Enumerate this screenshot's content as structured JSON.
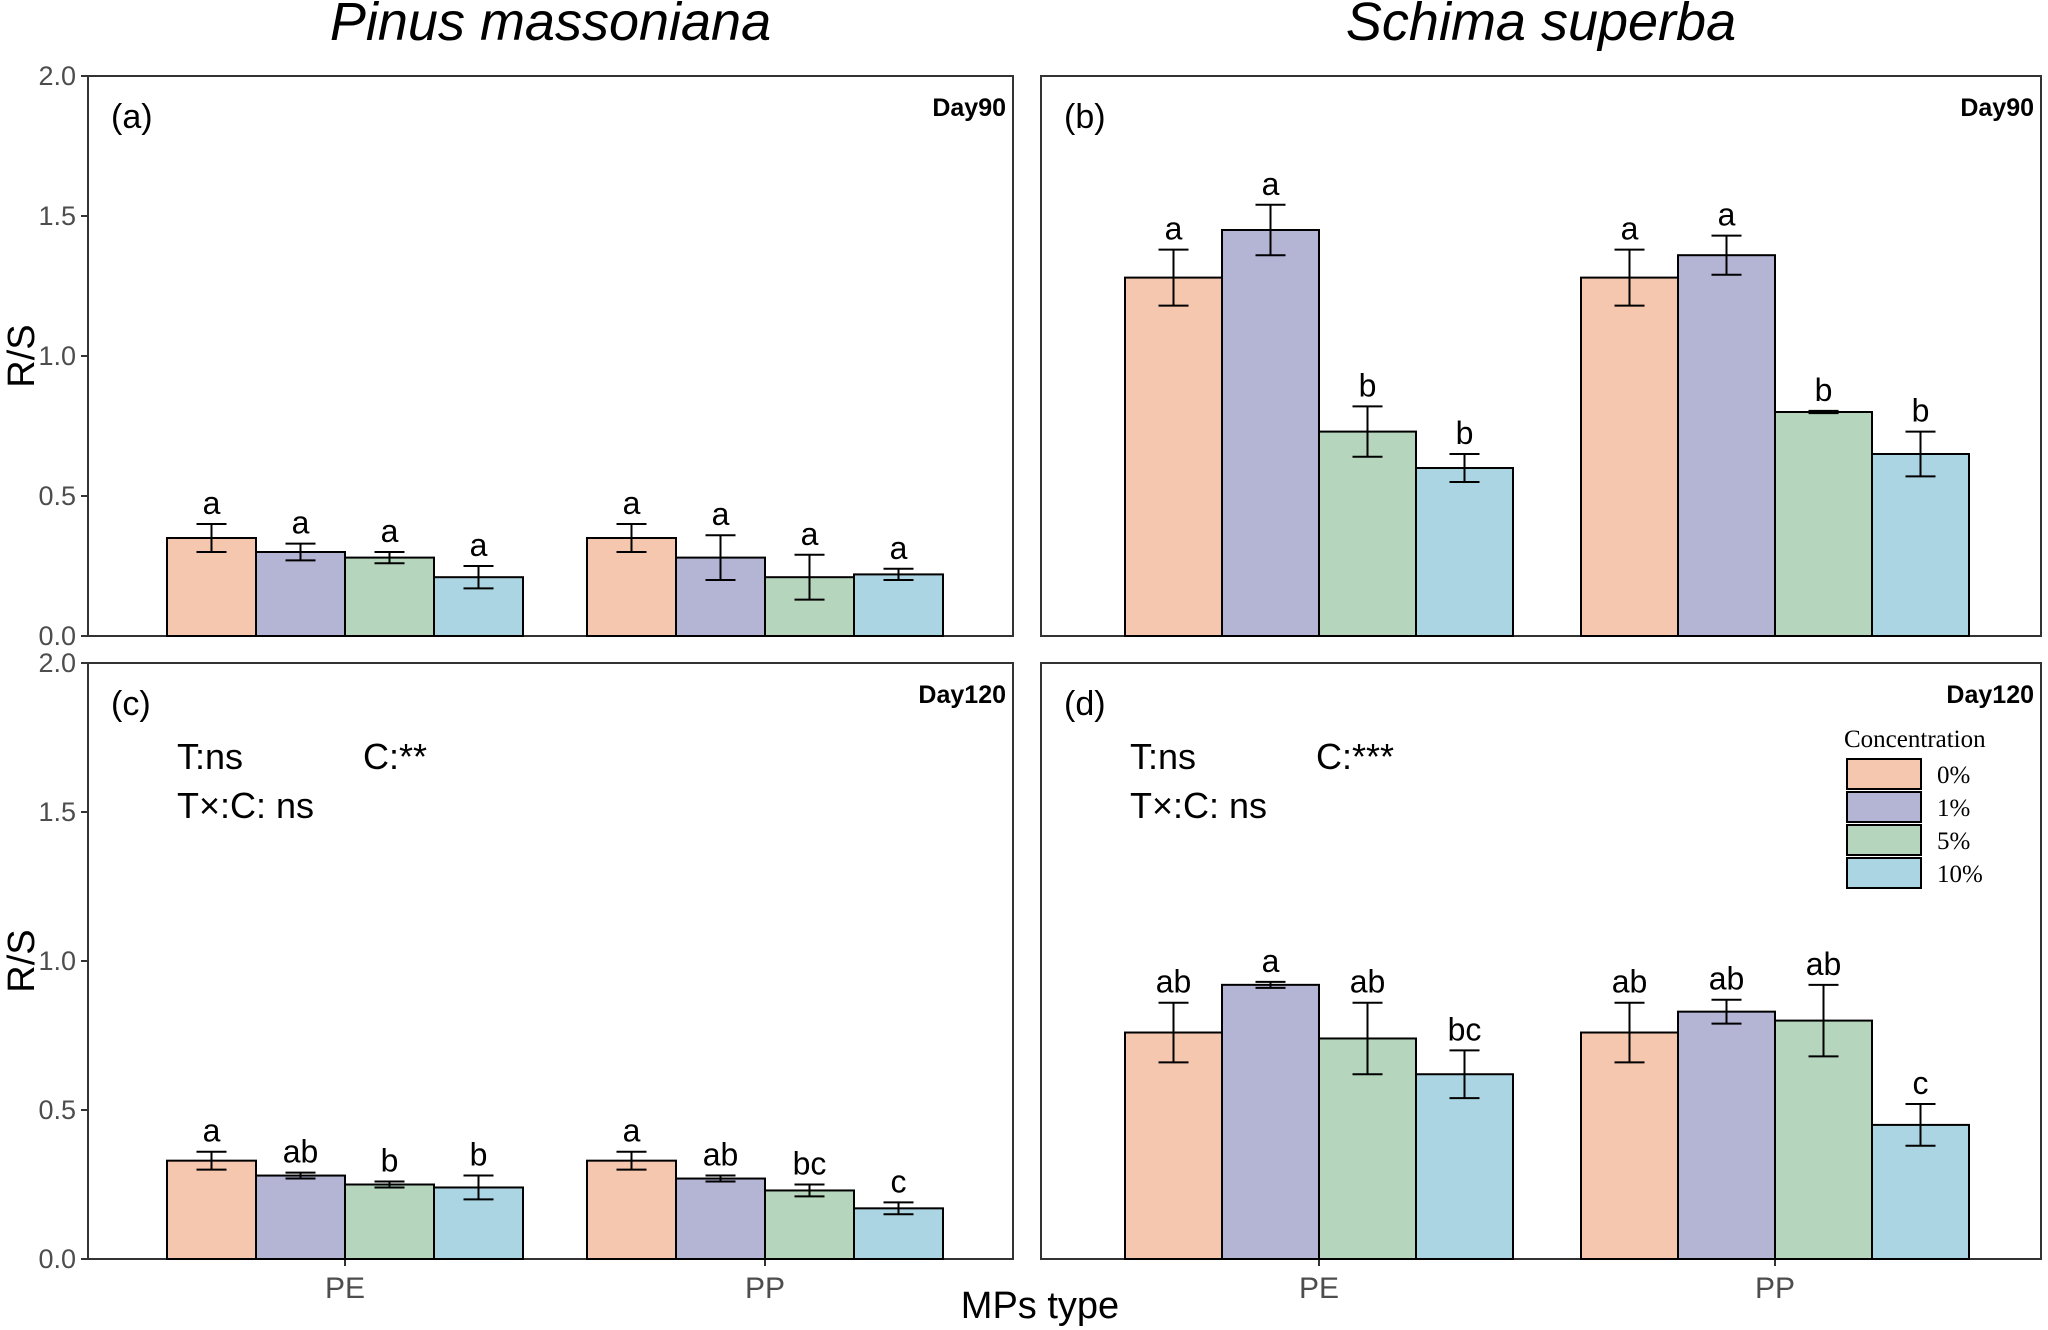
{
  "y_axis_title": "R/S",
  "x_axis_title": "MPs type",
  "legend": {
    "title": "Concentration",
    "labels": [
      "0%",
      "1%",
      "5%",
      "10%"
    ],
    "colors": [
      "#f4c7ae",
      "#b4b5d4",
      "#b5d6bd",
      "#acd5e3"
    ]
  },
  "chart_data": [
    {
      "type": "bar",
      "panel": "(a)",
      "column_title": "Pinus massoniana",
      "day": "Day90",
      "categories": [
        "PE",
        "PP"
      ],
      "ylim": [
        0,
        2.0
      ],
      "yticks": [
        "0.0",
        "0.5",
        "1.0",
        "1.5",
        "2.0"
      ],
      "series": [
        {
          "name": "0%",
          "values": [
            0.35,
            0.35
          ],
          "errors": [
            0.05,
            0.05
          ],
          "letters": [
            "a",
            "a"
          ]
        },
        {
          "name": "1%",
          "values": [
            0.3,
            0.28
          ],
          "errors": [
            0.03,
            0.08
          ],
          "letters": [
            "a",
            "a"
          ]
        },
        {
          "name": "5%",
          "values": [
            0.28,
            0.21
          ],
          "errors": [
            0.02,
            0.08
          ],
          "letters": [
            "a",
            "a"
          ]
        },
        {
          "name": "10%",
          "values": [
            0.21,
            0.22
          ],
          "errors": [
            0.04,
            0.02
          ],
          "letters": [
            "a",
            "a"
          ]
        }
      ],
      "stats": null,
      "show_legend": false
    },
    {
      "type": "bar",
      "panel": "(b)",
      "column_title": "Schima superba",
      "day": "Day90",
      "categories": [
        "PE",
        "PP"
      ],
      "ylim": [
        0,
        2.0
      ],
      "yticks": [
        "0.0",
        "0.5",
        "1.0",
        "1.5",
        "2.0"
      ],
      "series": [
        {
          "name": "0%",
          "values": [
            1.28,
            1.28
          ],
          "errors": [
            0.1,
            0.1
          ],
          "letters": [
            "a",
            "a"
          ]
        },
        {
          "name": "1%",
          "values": [
            1.45,
            1.36
          ],
          "errors": [
            0.09,
            0.07
          ],
          "letters": [
            "a",
            "a"
          ]
        },
        {
          "name": "5%",
          "values": [
            0.73,
            0.8
          ],
          "errors": [
            0.09,
            0.004
          ],
          "letters": [
            "b",
            "b"
          ]
        },
        {
          "name": "10%",
          "values": [
            0.6,
            0.65
          ],
          "errors": [
            0.05,
            0.08
          ],
          "letters": [
            "b",
            "b"
          ]
        }
      ],
      "stats": null,
      "show_legend": false
    },
    {
      "type": "bar",
      "panel": "(c)",
      "day": "Day120",
      "categories": [
        "PE",
        "PP"
      ],
      "ylim": [
        0,
        2.0
      ],
      "yticks": [
        "0.0",
        "0.5",
        "1.0",
        "1.5",
        "2.0"
      ],
      "series": [
        {
          "name": "0%",
          "values": [
            0.33,
            0.33
          ],
          "errors": [
            0.03,
            0.03
          ],
          "letters": [
            "a",
            "a"
          ]
        },
        {
          "name": "1%",
          "values": [
            0.28,
            0.27
          ],
          "errors": [
            0.01,
            0.01
          ],
          "letters": [
            "ab",
            "ab"
          ]
        },
        {
          "name": "5%",
          "values": [
            0.25,
            0.23
          ],
          "errors": [
            0.01,
            0.02
          ],
          "letters": [
            "b",
            "bc"
          ]
        },
        {
          "name": "10%",
          "values": [
            0.24,
            0.17
          ],
          "errors": [
            0.04,
            0.02
          ],
          "letters": [
            "b",
            "c"
          ]
        }
      ],
      "stats": {
        "t": "T:ns",
        "c": "C:**",
        "txc": "T×:C: ns"
      },
      "show_legend": false
    },
    {
      "type": "bar",
      "panel": "(d)",
      "day": "Day120",
      "categories": [
        "PE",
        "PP"
      ],
      "ylim": [
        0,
        2.0
      ],
      "yticks": [
        "0.0",
        "0.5",
        "1.0",
        "1.5",
        "2.0"
      ],
      "series": [
        {
          "name": "0%",
          "values": [
            0.76,
            0.76
          ],
          "errors": [
            0.1,
            0.1
          ],
          "letters": [
            "ab",
            "ab"
          ]
        },
        {
          "name": "1%",
          "values": [
            0.92,
            0.83
          ],
          "errors": [
            0.01,
            0.04
          ],
          "letters": [
            "a",
            "ab"
          ]
        },
        {
          "name": "5%",
          "values": [
            0.74,
            0.8
          ],
          "errors": [
            0.12,
            0.12
          ],
          "letters": [
            "ab",
            "ab"
          ]
        },
        {
          "name": "10%",
          "values": [
            0.62,
            0.45
          ],
          "errors": [
            0.08,
            0.07
          ],
          "letters": [
            "bc",
            "c"
          ]
        }
      ],
      "stats": {
        "t": "T:ns",
        "c": "C:***",
        "txc": "T×:C: ns"
      },
      "show_legend": true
    }
  ]
}
